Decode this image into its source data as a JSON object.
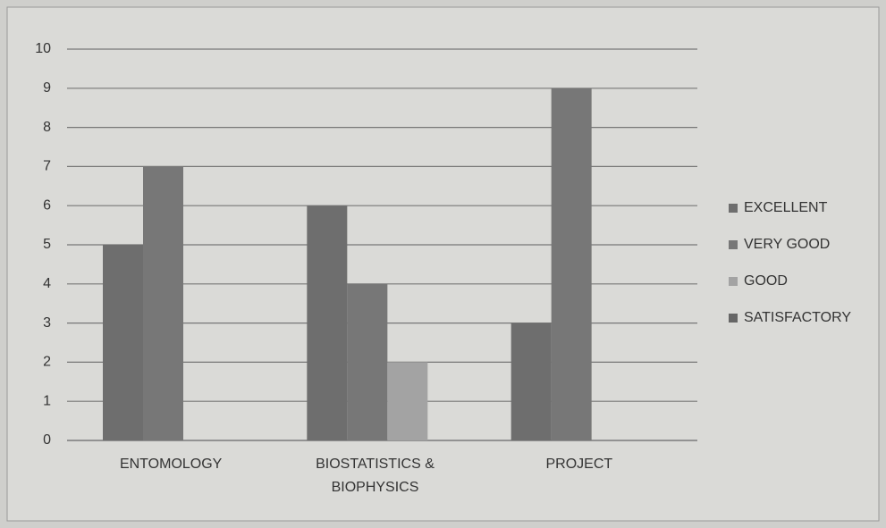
{
  "chart_data": {
    "type": "bar",
    "categories": [
      "ENTOMOLOGY",
      "BIOSTATISTICS & BIOPHYSICS",
      "PROJECT"
    ],
    "series": [
      {
        "name": "EXCELLENT",
        "color": "#6e6e6e",
        "values": [
          5,
          6,
          3
        ]
      },
      {
        "name": "VERY GOOD",
        "color": "#777777",
        "values": [
          7,
          4,
          9
        ]
      },
      {
        "name": "GOOD",
        "color": "#a3a3a3",
        "values": [
          0,
          2,
          0
        ]
      },
      {
        "name": "SATISFACTORY",
        "color": "#666666",
        "values": [
          0,
          0,
          0
        ]
      }
    ],
    "ylim": [
      0,
      10
    ],
    "yticks": [
      0,
      1,
      2,
      3,
      4,
      5,
      6,
      7,
      8,
      9,
      10
    ],
    "grid": true,
    "legend": "right"
  }
}
